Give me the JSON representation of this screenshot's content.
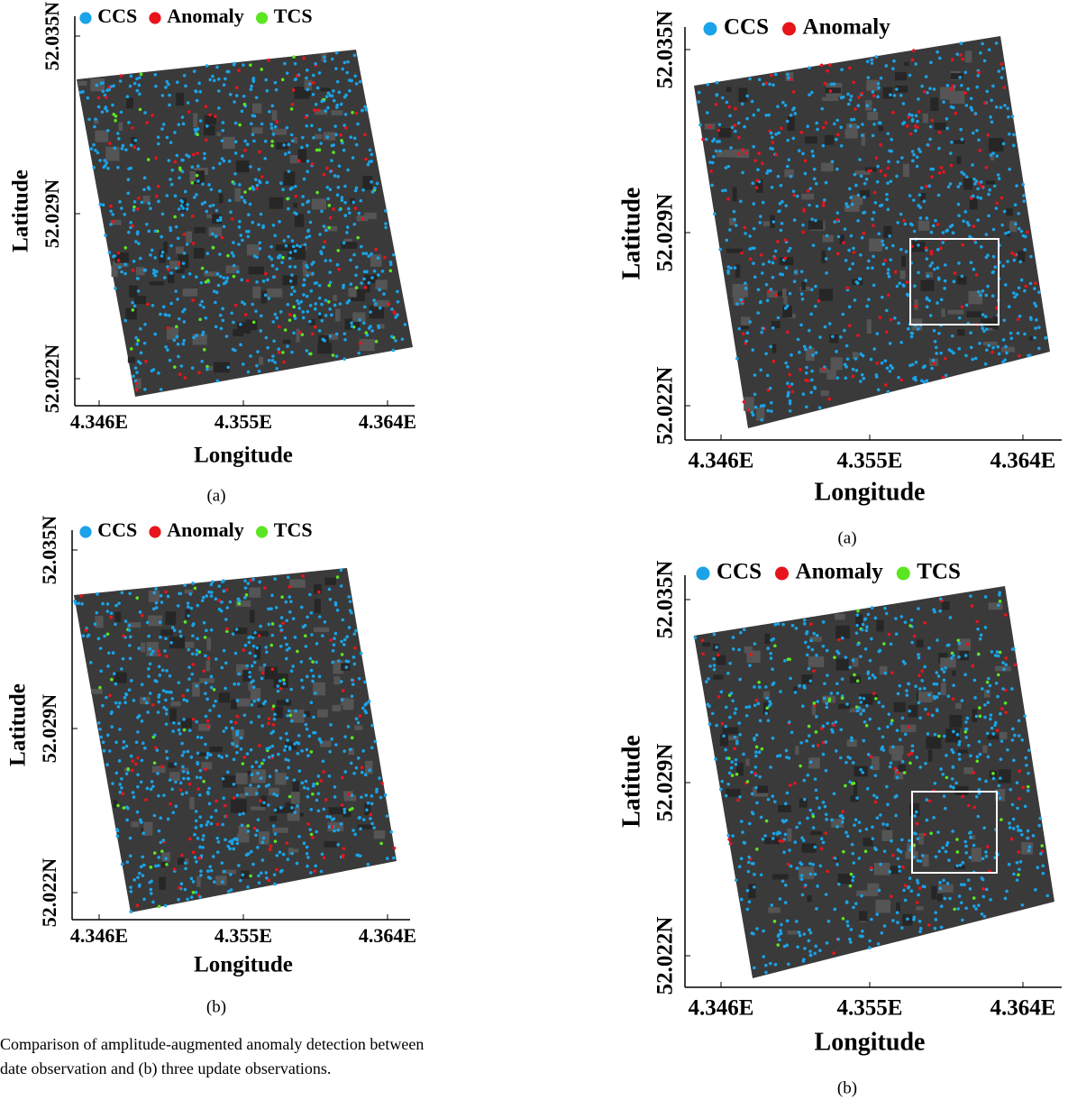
{
  "panels": [
    {
      "legend": [
        {
          "label": "CCS",
          "color": "#1aa3e8"
        },
        {
          "label": "Anomaly",
          "color": "#e8141c"
        },
        {
          "label": "TCS",
          "color": "#5be621"
        }
      ],
      "y_label": "Latitude",
      "x_label": "Longitude",
      "x_ticks": [
        "4.346E",
        "4.355E",
        "4.364E"
      ],
      "y_ticks": [
        "52.035N",
        "52.029N",
        "52.022N"
      ],
      "caption": "(a)"
    },
    {
      "legend": [
        {
          "label": "CCS",
          "color": "#1aa3e8"
        },
        {
          "label": "Anomaly",
          "color": "#e8141c"
        },
        {
          "label": "TCS",
          "color": "#5be621"
        }
      ],
      "y_label": "Latitude",
      "x_label": "Longitude",
      "x_ticks": [
        "4.346E",
        "4.355E",
        "4.364E"
      ],
      "y_ticks": [
        "52.035N",
        "52.029N",
        "52.022N"
      ],
      "caption": "(b)"
    },
    {
      "legend": [
        {
          "label": "CCS",
          "color": "#1aa3e8"
        },
        {
          "label": "Anomaly",
          "color": "#e8141c"
        }
      ],
      "y_label": "Latitude",
      "x_label": "Longitude",
      "x_ticks": [
        "4.346E",
        "4.355E",
        "4.364E"
      ],
      "y_ticks": [
        "52.035N",
        "52.029N",
        "52.022N"
      ],
      "caption": "(a)"
    },
    {
      "legend": [
        {
          "label": "CCS",
          "color": "#1aa3e8"
        },
        {
          "label": "Anomaly",
          "color": "#e8141c"
        },
        {
          "label": "TCS",
          "color": "#5be621"
        }
      ],
      "y_label": "Latitude",
      "x_label": "Longitude",
      "x_ticks": [
        "4.346E",
        "4.355E",
        "4.364E"
      ],
      "y_ticks": [
        "52.035N",
        "52.029N",
        "52.022N"
      ],
      "caption": "(b)"
    }
  ],
  "figure_caption": [
    "Comparison of amplitude-augmented anomaly detection between",
    "date observation and (b) three update observations."
  ]
}
